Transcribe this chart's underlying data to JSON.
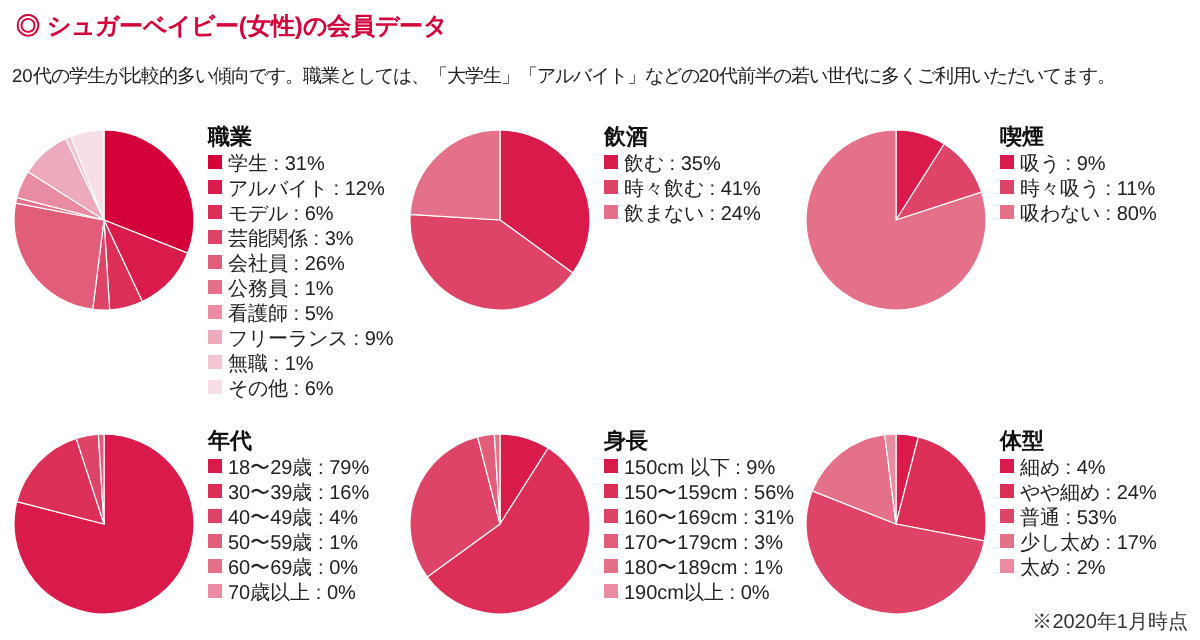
{
  "chart_data": [
    {
      "type": "other",
      "title": "◎ シュガーベイビー(女性)の会員データ",
      "subtitle": "20代の学生が比較的多い傾向です。職業としては、「大学生」「アルバイト」などの20代前半の若い世代に多くご利用いただいてます。",
      "annotations": [
        "※2020年1月時点"
      ]
    },
    {
      "type": "pie",
      "title": "職業",
      "legend": "right",
      "categories": [
        "学生",
        "アルバイト",
        "モデル",
        "芸能関係",
        "会社員",
        "公務員",
        "看護師",
        "フリーランス",
        "無職",
        "その他"
      ],
      "values": [
        31,
        12,
        6,
        3,
        26,
        1,
        5,
        9,
        1,
        6
      ],
      "value_labels": [
        "31%",
        "12%",
        "6%",
        "3%",
        "26%",
        "1%",
        "5%",
        "9%",
        "1%",
        "6%"
      ],
      "colors": [
        "#d4003a",
        "#d81b4b",
        "#db2f58",
        "#de4467",
        "#e25d79",
        "#e57089",
        "#e98ca2",
        "#edaabc",
        "#f2c5d1",
        "#f8dfe6"
      ]
    },
    {
      "type": "pie",
      "title": "飲酒",
      "legend": "right",
      "categories": [
        "飲む",
        "時々飲む",
        "飲まない"
      ],
      "values": [
        35,
        41,
        24
      ],
      "value_labels": [
        "35%",
        "41%",
        "24%"
      ],
      "colors": [
        "#d81b4b",
        "#de4467",
        "#e57089"
      ]
    },
    {
      "type": "pie",
      "title": "喫煙",
      "legend": "right",
      "categories": [
        "吸う",
        "時々吸う",
        "吸わない"
      ],
      "values": [
        9,
        11,
        80
      ],
      "value_labels": [
        "9%",
        "11%",
        "80%"
      ],
      "colors": [
        "#d81b4b",
        "#de4467",
        "#e57089"
      ]
    },
    {
      "type": "pie",
      "title": "年代",
      "legend": "right",
      "categories": [
        "18〜29歳",
        "30〜39歳",
        "40〜49歳",
        "50〜59歳",
        "60〜69歳",
        "70歳以上"
      ],
      "values": [
        79,
        16,
        4,
        1,
        0,
        0
      ],
      "value_labels": [
        "79%",
        "16%",
        "4%",
        "1%",
        "0%",
        "0%"
      ],
      "colors": [
        "#d81b4b",
        "#db2f58",
        "#de4467",
        "#e25d79",
        "#e57089",
        "#e98ca2"
      ]
    },
    {
      "type": "pie",
      "title": "身長",
      "legend": "right",
      "categories": [
        "150cm 以下",
        "150〜159cm",
        "160〜169cm",
        "170〜179cm",
        "180〜189cm",
        "190cm以上"
      ],
      "values": [
        9,
        56,
        31,
        3,
        1,
        0
      ],
      "value_labels": [
        "9%",
        "56%",
        "31%",
        "3%",
        "1%",
        "0%"
      ],
      "colors": [
        "#d81b4b",
        "#db2f58",
        "#de4467",
        "#e25d79",
        "#e57089",
        "#e98ca2"
      ]
    },
    {
      "type": "pie",
      "title": "体型",
      "legend": "right",
      "categories": [
        "細め",
        "やや細め",
        "普通",
        "少し太め",
        "太め"
      ],
      "values": [
        4,
        24,
        53,
        17,
        2
      ],
      "value_labels": [
        "4%",
        "24%",
        "53%",
        "17%",
        "2%"
      ],
      "colors": [
        "#d81b4b",
        "#db2f58",
        "#de4467",
        "#e57089",
        "#e98ca2"
      ]
    }
  ]
}
